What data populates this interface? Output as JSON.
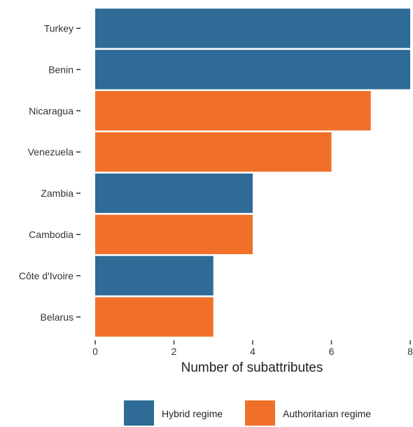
{
  "chart_data": {
    "type": "bar",
    "orientation": "horizontal",
    "categories": [
      "Turkey",
      "Benin",
      "Nicaragua",
      "Venezuela",
      "Zambia",
      "Cambodia",
      "Côte d'Ivoire",
      "Belarus"
    ],
    "values": [
      8,
      8,
      7,
      6,
      4,
      4,
      3,
      3
    ],
    "groups": [
      "Hybrid regime",
      "Hybrid regime",
      "Authoritarian regime",
      "Authoritarian regime",
      "Hybrid regime",
      "Authoritarian regime",
      "Hybrid regime",
      "Authoritarian regime"
    ],
    "xlabel": "Number of subattributes",
    "ylabel": "",
    "xlim": [
      0,
      8
    ],
    "xticks": [
      0,
      2,
      4,
      6,
      8
    ],
    "grid": false,
    "legend": {
      "position": "bottom",
      "entries": [
        {
          "name": "Hybrid regime",
          "color": "#2e6b96"
        },
        {
          "name": "Authoritarian regime",
          "color": "#f0702a"
        }
      ]
    }
  }
}
